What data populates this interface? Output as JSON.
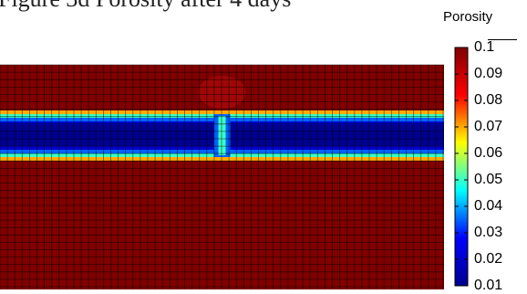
{
  "caption": "Figure 3d Porosity after 4 days",
  "chart_data": {
    "type": "heatmap",
    "title": "Porosity after 4 days",
    "colorbar": {
      "label": "Porosity",
      "range": [
        0.01,
        0.1
      ],
      "ticks": [
        "0.1",
        "0.09",
        "0.08",
        "0.07",
        "0.06",
        "0.05",
        "0.04",
        "0.03",
        "0.02",
        "0.01"
      ],
      "colormap": "jet",
      "colors": [
        "#00008f",
        "#0000ff",
        "#00ffff",
        "#ffff00",
        "#ff0000",
        "#800000"
      ]
    },
    "grid": true,
    "field": {
      "background_value": 0.1,
      "band_value": 0.01,
      "band_transition_value": 0.05,
      "fracture_value": 0.05,
      "fracture_at_center": true
    }
  }
}
